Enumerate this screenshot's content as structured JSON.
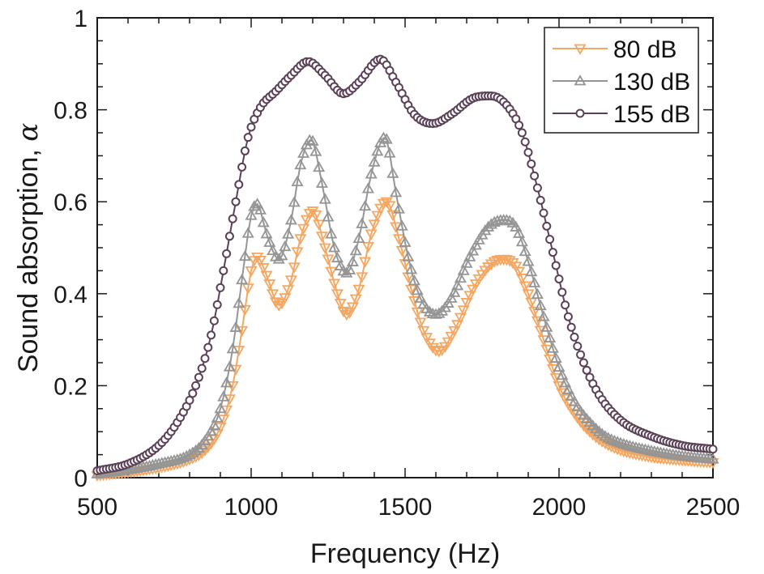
{
  "chart_data": {
    "type": "line",
    "title": "",
    "xlabel": "Frequency (Hz)",
    "ylabel": "Sound absorption, α",
    "xlim": [
      500,
      2500
    ],
    "ylim": [
      0,
      1
    ],
    "xticks": [
      500,
      1000,
      1500,
      2000,
      2500
    ],
    "xtick_labels": [
      "500",
      "1000",
      "1500",
      "2000",
      "2500"
    ],
    "yticks": [
      0,
      0.2,
      0.4,
      0.6,
      0.8,
      1
    ],
    "ytick_labels": [
      "0",
      "0.2",
      "0.4",
      "0.6",
      "0.8",
      "1"
    ],
    "grid": false,
    "legend_position": "top-right",
    "marker_spacing_hz": 10,
    "series": [
      {
        "name": "80 dB",
        "color": "#f5a660",
        "marker": "triangle-down",
        "x": [
          500,
          600,
          700,
          800,
          850,
          900,
          940,
          970,
          1000,
          1020,
          1050,
          1090,
          1130,
          1160,
          1200,
          1240,
          1280,
          1310,
          1350,
          1390,
          1440,
          1480,
          1520,
          1560,
          1610,
          1660,
          1720,
          1780,
          1820,
          1860,
          1900,
          1950,
          2000,
          2050,
          2100,
          2150,
          2200,
          2300,
          2400,
          2500
        ],
        "y": [
          0.005,
          0.012,
          0.022,
          0.04,
          0.06,
          0.11,
          0.2,
          0.32,
          0.45,
          0.48,
          0.44,
          0.375,
          0.43,
          0.52,
          0.58,
          0.5,
          0.4,
          0.355,
          0.41,
          0.53,
          0.6,
          0.52,
          0.41,
          0.32,
          0.275,
          0.32,
          0.41,
          0.465,
          0.475,
          0.46,
          0.4,
          0.3,
          0.2,
          0.14,
          0.1,
          0.075,
          0.06,
          0.045,
          0.038,
          0.033
        ]
      },
      {
        "name": "130 dB",
        "color": "#959595",
        "marker": "triangle-up",
        "x": [
          500,
          600,
          700,
          800,
          850,
          900,
          940,
          970,
          1000,
          1020,
          1050,
          1090,
          1130,
          1160,
          1195,
          1230,
          1270,
          1310,
          1350,
          1390,
          1435,
          1470,
          1510,
          1550,
          1600,
          1650,
          1710,
          1770,
          1820,
          1860,
          1900,
          1950,
          2000,
          2050,
          2100,
          2150,
          2200,
          2300,
          2400,
          2500
        ],
        "y": [
          0.008,
          0.017,
          0.03,
          0.05,
          0.08,
          0.15,
          0.28,
          0.43,
          0.57,
          0.595,
          0.53,
          0.475,
          0.56,
          0.68,
          0.735,
          0.64,
          0.5,
          0.445,
          0.52,
          0.66,
          0.74,
          0.62,
          0.48,
          0.39,
          0.355,
          0.39,
          0.48,
          0.545,
          0.56,
          0.545,
          0.47,
          0.35,
          0.24,
          0.165,
          0.12,
          0.09,
          0.075,
          0.058,
          0.047,
          0.04
        ]
      },
      {
        "name": "155 dB",
        "color": "#5b4158",
        "marker": "circle",
        "x": [
          500,
          600,
          700,
          760,
          820,
          870,
          910,
          950,
          990,
          1030,
          1080,
          1130,
          1185,
          1240,
          1300,
          1350,
          1420,
          1470,
          1530,
          1590,
          1650,
          1720,
          1780,
          1830,
          1880,
          1930,
          1980,
          2030,
          2080,
          2130,
          2200,
          2300,
          2400,
          2500
        ],
        "y": [
          0.015,
          0.03,
          0.07,
          0.12,
          0.2,
          0.31,
          0.45,
          0.6,
          0.74,
          0.805,
          0.84,
          0.875,
          0.905,
          0.875,
          0.835,
          0.86,
          0.91,
          0.86,
          0.79,
          0.77,
          0.79,
          0.825,
          0.83,
          0.81,
          0.75,
          0.63,
          0.49,
          0.35,
          0.25,
          0.18,
          0.125,
          0.09,
          0.07,
          0.062
        ]
      }
    ]
  }
}
